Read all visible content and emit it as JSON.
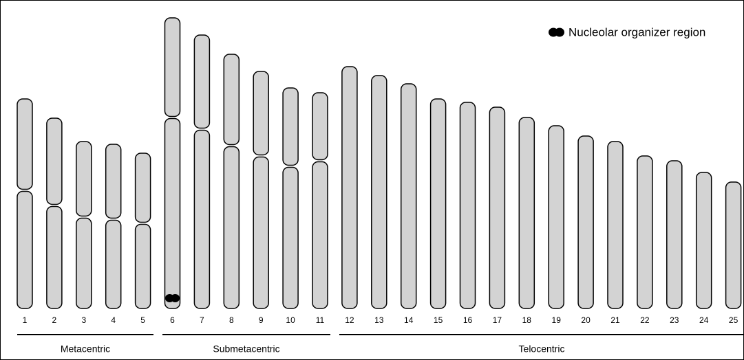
{
  "chromosomes": [
    "1",
    "2",
    "3",
    "4",
    "5",
    "6",
    "7",
    "8",
    "9",
    "10",
    "11",
    "12",
    "13",
    "14",
    "15",
    "16",
    "17",
    "18",
    "19",
    "20",
    "21",
    "22",
    "23",
    "24",
    "25"
  ],
  "groups": [
    "Metacentric",
    "Submetacentric",
    "Telocentric"
  ],
  "legend": {
    "label": "Nucleolar organizer region"
  }
}
